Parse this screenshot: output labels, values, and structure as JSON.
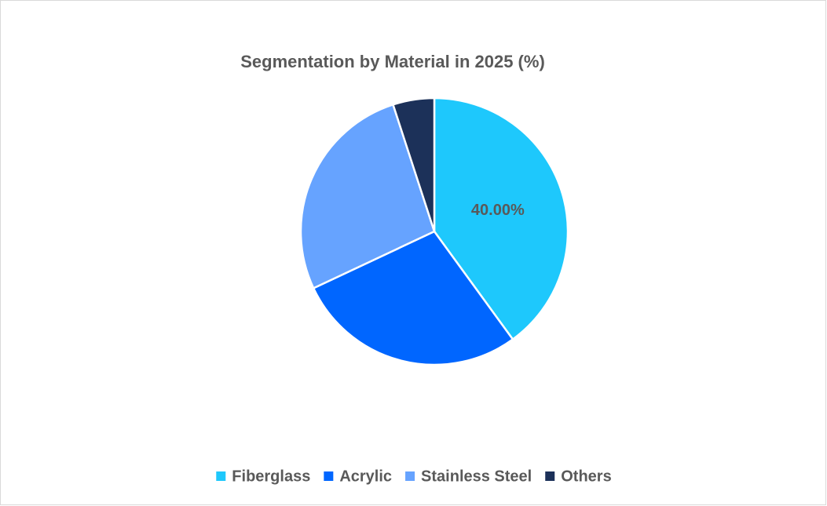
{
  "chart_data": {
    "type": "pie",
    "title": "Segmentation by Material in 2025 (%)",
    "categories": [
      "Fiberglass",
      "Acrylic",
      "Stainless Steel",
      "Others"
    ],
    "values": [
      40,
      28,
      27,
      5
    ],
    "value_labels": [
      "40.00%",
      null,
      null,
      null
    ],
    "colors": [
      "#1ec8fc",
      "#0066ff",
      "#66a3ff",
      "#1c3159"
    ],
    "legend": "bottom"
  }
}
